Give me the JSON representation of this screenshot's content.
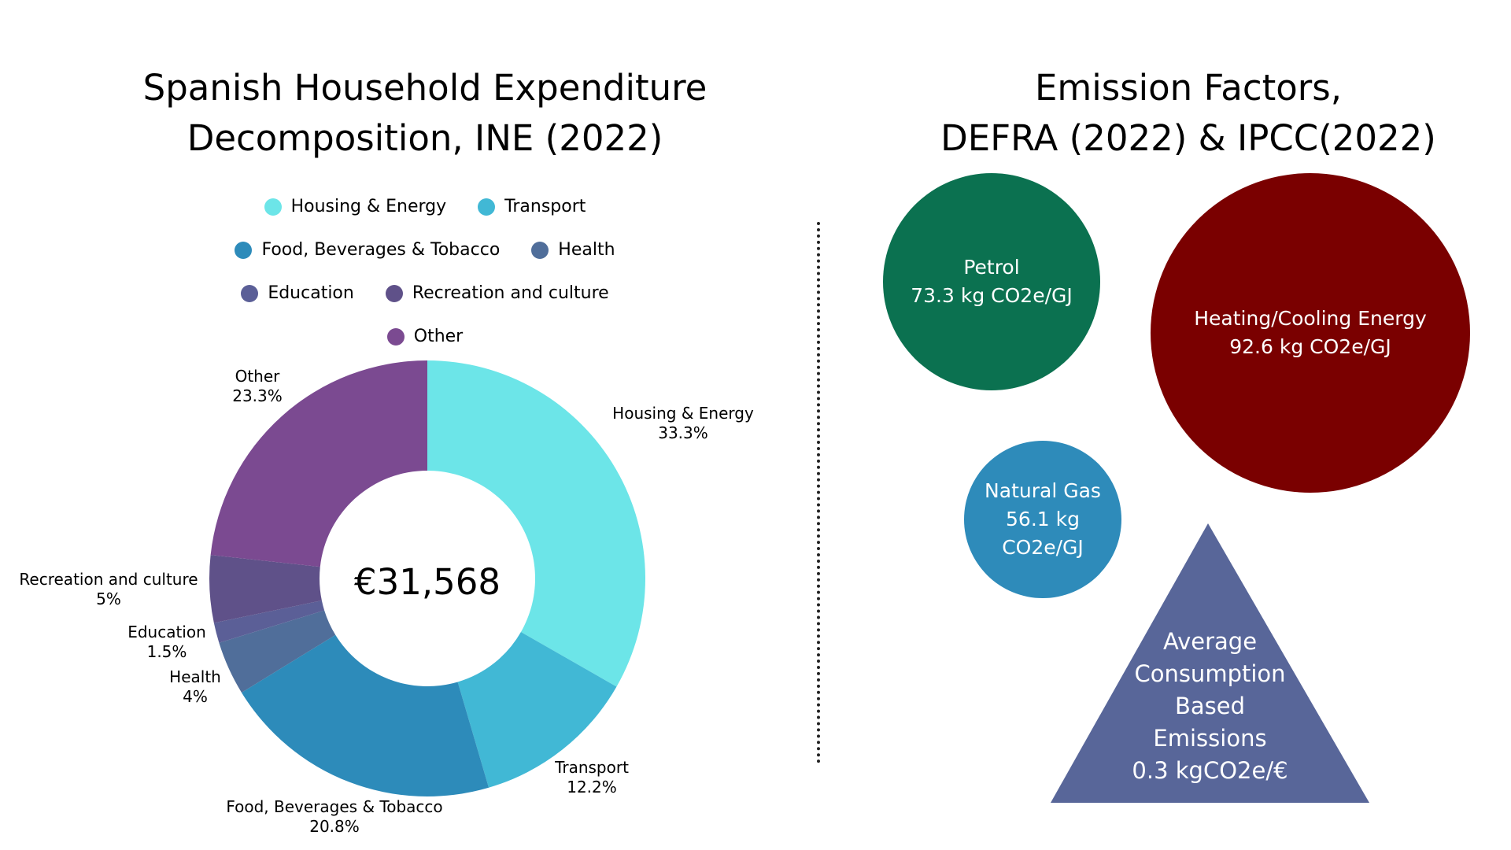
{
  "left_title": [
    "Spanish Household Expenditure",
    "Decomposition, INE (2022)"
  ],
  "right_title": [
    "Emission Factors,",
    "DEFRA (2022) & IPCC(2022)"
  ],
  "chart_data": {
    "type": "pie",
    "donut": true,
    "center_label": "€31,568",
    "legend_position": "top",
    "categories": [
      "Housing & Energy",
      "Transport",
      "Food, Beverages & Tobacco",
      "Health",
      "Education",
      "Recreation and culture",
      "Other"
    ],
    "values": [
      33.3,
      12.2,
      20.8,
      4,
      1.5,
      5,
      23.3
    ],
    "value_labels": [
      "33.3%",
      "12.2%",
      "20.8%",
      "4%",
      "1.5%",
      "5%",
      "23.3%"
    ],
    "colors": [
      "#6ce5e8",
      "#41b8d5",
      "#2d8bba",
      "#506e9a",
      "#5b5f97",
      "#5f5189",
      "#7b4a91"
    ]
  },
  "emission_factors": [
    {
      "name": "Petrol",
      "value": "73.3 kg CO2e/GJ",
      "color": "#0b7150"
    },
    {
      "name": "Heating/Cooling Energy",
      "value": "92.6 kg CO2e/GJ",
      "color": "#7a0000"
    },
    {
      "name": "Natural Gas",
      "value_lines": [
        "56.1 kg",
        "CO2e/GJ"
      ],
      "color": "#2e8bba"
    }
  ],
  "average_emissions": {
    "lines": [
      "Average",
      "Consumption",
      "Based",
      "Emissions",
      "0.3 kgCO2e/€"
    ],
    "color": "#586699"
  }
}
